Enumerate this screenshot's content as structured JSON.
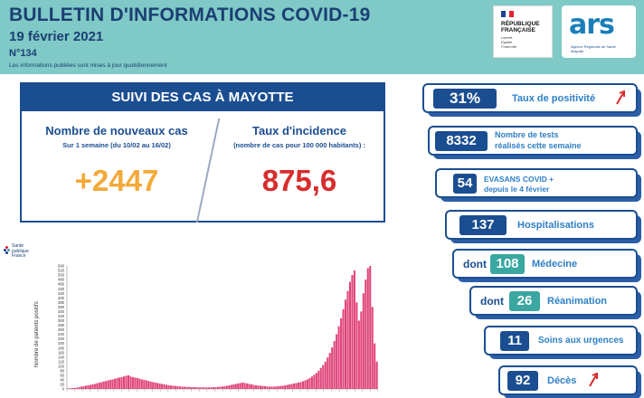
{
  "header": {
    "title": "BULLETIN D'INFORMATIONS COVID-19",
    "date": "19 février 2021",
    "number": "N°134",
    "note": "Les informations publiées sont mises à jour quotidiennement"
  },
  "logos": {
    "rf_line1": "RÉPUBLIQUE",
    "rf_line2": "FRANÇAISE",
    "rf_motto1": "Liberté",
    "rf_motto2": "Égalité",
    "rf_motto3": "Fraternité",
    "ars_name": "ars",
    "ars_sub": "Agence Régionale de Santé Mayotte",
    "spf_line1": "Santé",
    "spf_line2": "publique",
    "spf_line3": "France"
  },
  "suivi": {
    "title": "SUIVI DES CAS À MAYOTTE",
    "left_head": "Nombre de nouveaux cas",
    "left_sub": "Sur 1 semaine (du 10/02 au 16/02)",
    "left_value": "+2447",
    "right_head": "Taux d'incidence",
    "right_sub": "(nombre de cas pour 100 000 habitants) :",
    "right_value": "875,6"
  },
  "kpis": {
    "positivite_value": "31%",
    "positivite_label": "Taux de positivité",
    "tests_value": "8332",
    "tests_label1": "Nombre de tests",
    "tests_label2": "réalisés cette semaine",
    "evasans_value": "54",
    "evasans_label1": "EVASANS COVID +",
    "evasans_label2": "depuis le 4 février",
    "hospi_value": "137",
    "hospi_label": "Hospitalisations",
    "medecine_prefix": "dont",
    "medecine_value": "108",
    "medecine_label": "Médecine",
    "reanimation_prefix": "dont",
    "reanimation_value": "26",
    "reanimation_label": "Réanimation",
    "urgences_value": "11",
    "urgences_label": "Soins aux urgences",
    "deces_value": "92",
    "deces_label": "Décès"
  },
  "colors": {
    "navy": "#1b4e91",
    "teal_header": "#7fc9c6",
    "orange": "#f4a93a",
    "red": "#d82c2c",
    "bar_pink": "#e0457b"
  },
  "icons": {
    "positivite_trend": "arrow-up-right-icon",
    "deces_trend": "arrow-up-right-icon"
  },
  "chart_data": {
    "type": "bar",
    "ylabel": "Nombre de patients positifs",
    "ylim": [
      0,
      540
    ],
    "yticks": [
      0,
      20,
      40,
      60,
      80,
      100,
      120,
      140,
      160,
      180,
      200,
      220,
      240,
      260,
      280,
      300,
      320,
      340,
      360,
      380,
      400,
      420,
      440,
      460,
      480,
      500,
      520,
      540
    ],
    "grid": false,
    "series": [
      {
        "values": [
          2,
          3,
          4,
          5,
          6,
          8,
          10,
          12,
          14,
          16,
          18,
          20,
          22,
          25,
          28,
          30,
          33,
          35,
          38,
          40,
          42,
          45,
          48,
          50,
          52,
          55,
          58,
          60,
          55,
          52,
          50,
          48,
          45,
          42,
          40,
          38,
          35,
          32,
          30,
          28,
          26,
          24,
          22,
          20,
          18,
          16,
          15,
          14,
          13,
          12,
          11,
          10,
          10,
          9,
          9,
          8,
          8,
          8,
          7,
          7,
          7,
          7,
          7,
          7,
          7,
          8,
          8,
          9,
          10,
          11,
          12,
          14,
          16,
          18,
          20,
          22,
          24,
          26,
          28,
          26,
          24,
          22,
          20,
          18,
          16,
          15,
          14,
          13,
          12,
          11,
          10,
          10,
          10,
          11,
          12,
          13,
          14,
          16,
          18,
          20,
          22,
          24,
          26,
          28,
          30,
          34,
          38,
          42,
          48,
          55,
          62,
          70,
          80,
          92,
          105,
          120,
          138,
          158,
          182,
          210,
          240,
          275,
          310,
          350,
          392,
          430,
          470,
          500,
          520,
          380,
          300,
          340,
          420,
          480,
          530,
          540,
          360,
          200,
          120
        ]
      }
    ]
  }
}
